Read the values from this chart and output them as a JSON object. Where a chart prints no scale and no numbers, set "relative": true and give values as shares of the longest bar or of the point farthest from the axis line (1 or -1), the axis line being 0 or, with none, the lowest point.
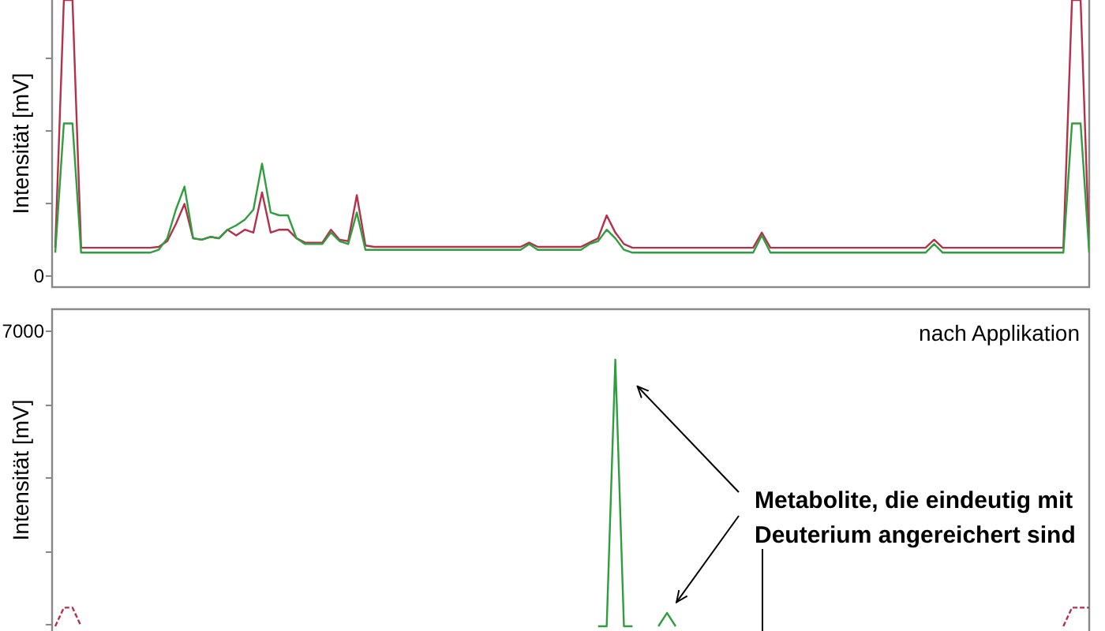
{
  "chart_data": [
    {
      "type": "line",
      "relative": true,
      "ylabel": "Intensität [mV]",
      "tick_labels": "y",
      "annotations": [
        "0"
      ],
      "categories": [
        null,
        null,
        null,
        null,
        null,
        null,
        null,
        null,
        null,
        null,
        null,
        null,
        null,
        null,
        null,
        null,
        null,
        null,
        null,
        null,
        null,
        null,
        null,
        null,
        null,
        null,
        null,
        null,
        null,
        null,
        null,
        null,
        null,
        null,
        null,
        null,
        null,
        null,
        null,
        null,
        null,
        null,
        null,
        null,
        null,
        null,
        null,
        null,
        null,
        null,
        null,
        null,
        null,
        null,
        null,
        null,
        null,
        null,
        null,
        null,
        null,
        null,
        null,
        null,
        null,
        null,
        null,
        null,
        null,
        null,
        null,
        null,
        null,
        null,
        null,
        null,
        null,
        null,
        null,
        null,
        null,
        null,
        null,
        null,
        null,
        null,
        null,
        null,
        null,
        null,
        null,
        null,
        null,
        null,
        null,
        null,
        null,
        null,
        null,
        null,
        null,
        null,
        null,
        null,
        null,
        null,
        null,
        null,
        null,
        null,
        null,
        null,
        null,
        null,
        null,
        null,
        null,
        null,
        null,
        null,
        null
      ],
      "series": [
        {
          "color": "#b5304a",
          "values": [
            0.137,
            1,
            1,
            0.137,
            0.137,
            0.137,
            0.137,
            0.137,
            0.137,
            0.137,
            0.137,
            0.137,
            0.14,
            0.16,
            0.22,
            0.29,
            0.17,
            0.165,
            0.175,
            0.17,
            0.2,
            0.18,
            0.2,
            0.19,
            0.33,
            0.19,
            0.2,
            0.2,
            0.17,
            0.155,
            0.155,
            0.155,
            0.2,
            0.165,
            0.16,
            0.32,
            0.145,
            0.14,
            0.14,
            0.14,
            0.14,
            0.14,
            0.14,
            0.14,
            0.14,
            0.14,
            0.14,
            0.14,
            0.14,
            0.14,
            0.14,
            0.14,
            0.14,
            0.14,
            0.14,
            0.155,
            0.14,
            0.14,
            0.14,
            0.14,
            0.14,
            0.14,
            0.155,
            0.17,
            0.25,
            0.19,
            0.15,
            0.137,
            0.137,
            0.137,
            0.137,
            0.137,
            0.137,
            0.137,
            0.137,
            0.137,
            0.137,
            0.137,
            0.137,
            0.137,
            0.137,
            0.137,
            0.19,
            0.137,
            0.137,
            0.137,
            0.137,
            0.137,
            0.137,
            0.137,
            0.137,
            0.137,
            0.137,
            0.137,
            0.137,
            0.137,
            0.137,
            0.137,
            0.137,
            0.137,
            0.137,
            0.137,
            0.165,
            0.137,
            0.137,
            0.137,
            0.137,
            0.137,
            0.137,
            0.137,
            0.137,
            0.137,
            0.137,
            0.137,
            0.137,
            0.137,
            0.137,
            0.137,
            1,
            1,
            0.137
          ]
        },
        {
          "color": "#2e9e3e",
          "values": [
            0.12,
            0.57,
            0.57,
            0.12,
            0.12,
            0.12,
            0.12,
            0.12,
            0.12,
            0.12,
            0.12,
            0.12,
            0.13,
            0.17,
            0.27,
            0.35,
            0.17,
            0.165,
            0.175,
            0.17,
            0.2,
            0.215,
            0.235,
            0.27,
            0.43,
            0.26,
            0.25,
            0.25,
            0.17,
            0.15,
            0.15,
            0.15,
            0.19,
            0.16,
            0.15,
            0.26,
            0.13,
            0.13,
            0.13,
            0.13,
            0.13,
            0.13,
            0.13,
            0.13,
            0.13,
            0.13,
            0.13,
            0.13,
            0.13,
            0.13,
            0.13,
            0.13,
            0.13,
            0.13,
            0.13,
            0.15,
            0.13,
            0.13,
            0.13,
            0.13,
            0.13,
            0.13,
            0.15,
            0.16,
            0.2,
            0.17,
            0.13,
            0.12,
            0.12,
            0.12,
            0.12,
            0.12,
            0.12,
            0.12,
            0.12,
            0.12,
            0.12,
            0.12,
            0.12,
            0.12,
            0.12,
            0.12,
            0.18,
            0.12,
            0.12,
            0.12,
            0.12,
            0.12,
            0.12,
            0.12,
            0.12,
            0.12,
            0.12,
            0.12,
            0.12,
            0.12,
            0.12,
            0.12,
            0.12,
            0.12,
            0.12,
            0.12,
            0.15,
            0.12,
            0.12,
            0.12,
            0.12,
            0.12,
            0.12,
            0.12,
            0.12,
            0.12,
            0.12,
            0.12,
            0.12,
            0.12,
            0.12,
            0.12,
            0.57,
            0.57,
            0.12
          ]
        }
      ]
    },
    {
      "type": "line",
      "relative": true,
      "title": "nach Applikation",
      "ylabel": "Intensität [mV]",
      "tick_labels": "y",
      "annotations": [
        "7000",
        "Metabolite, die eindeutig mit Deuterium angereichert sind"
      ],
      "categories": [
        null,
        null,
        null,
        null,
        null,
        null,
        null,
        null,
        null,
        null,
        null,
        null,
        null,
        null,
        null,
        null,
        null,
        null,
        null,
        null,
        null,
        null,
        null,
        null,
        null,
        null,
        null,
        null,
        null,
        null,
        null,
        null,
        null,
        null,
        null,
        null,
        null,
        null,
        null,
        null,
        null,
        null,
        null,
        null,
        null,
        null,
        null,
        null,
        null,
        null,
        null,
        null,
        null,
        null,
        null,
        null,
        null,
        null,
        null,
        null,
        null,
        null,
        null,
        null,
        null,
        null,
        null,
        null,
        null,
        null,
        null,
        null,
        null,
        null,
        null,
        null,
        null,
        null,
        null,
        null,
        null,
        null,
        null,
        null,
        null,
        null,
        null,
        null,
        null,
        null,
        null,
        null,
        null,
        null,
        null,
        null,
        null,
        null,
        null,
        null,
        null,
        null,
        null,
        null,
        null,
        null,
        null,
        null,
        null,
        null,
        null,
        null,
        null,
        null,
        null,
        null,
        null,
        null,
        null,
        null,
        null
      ],
      "series": [
        {
          "color": "#b5304a",
          "line_style": "dashed",
          "values": [
            0,
            0.07,
            0.07,
            0,
            null,
            null,
            null,
            null,
            null,
            null,
            null,
            null,
            null,
            null,
            null,
            null,
            null,
            null,
            null,
            null,
            null,
            null,
            null,
            null,
            null,
            null,
            null,
            null,
            null,
            null,
            null,
            null,
            null,
            null,
            null,
            null,
            null,
            null,
            null,
            null,
            null,
            null,
            null,
            null,
            null,
            null,
            null,
            null,
            null,
            null,
            null,
            null,
            null,
            null,
            null,
            null,
            null,
            null,
            null,
            null,
            null,
            null,
            null,
            null,
            null,
            null,
            null,
            null,
            null,
            null,
            null,
            null,
            null,
            null,
            null,
            null,
            null,
            null,
            null,
            null,
            null,
            null,
            null,
            null,
            null,
            null,
            null,
            null,
            null,
            null,
            null,
            null,
            null,
            null,
            null,
            null,
            null,
            null,
            null,
            null,
            null,
            null,
            null,
            null,
            null,
            null,
            null,
            null,
            null,
            null,
            null,
            null,
            null,
            null,
            null,
            null,
            null,
            0,
            0.07,
            0.07,
            0.07
          ]
        },
        {
          "color": "#2e9e3e",
          "values": [
            null,
            null,
            null,
            null,
            null,
            null,
            null,
            null,
            null,
            null,
            null,
            null,
            null,
            null,
            null,
            null,
            null,
            null,
            null,
            null,
            null,
            null,
            null,
            null,
            null,
            null,
            null,
            null,
            null,
            null,
            null,
            null,
            null,
            null,
            null,
            null,
            null,
            null,
            null,
            null,
            null,
            null,
            null,
            null,
            null,
            null,
            null,
            null,
            null,
            null,
            null,
            null,
            null,
            null,
            null,
            null,
            null,
            null,
            null,
            null,
            null,
            null,
            null,
            0,
            0,
            1,
            0,
            0,
            null,
            null,
            0,
            0.05,
            0,
            null,
            null,
            null,
            null,
            null,
            null,
            null,
            null,
            null,
            null,
            null,
            null,
            null,
            null,
            null,
            null,
            null,
            null,
            null,
            null,
            null,
            null,
            null,
            null,
            null,
            null,
            null,
            null,
            null,
            null,
            null,
            null,
            null,
            null,
            null,
            null,
            null,
            null,
            null,
            null,
            null,
            null,
            null,
            null,
            null,
            null,
            null,
            null
          ]
        }
      ]
    }
  ]
}
